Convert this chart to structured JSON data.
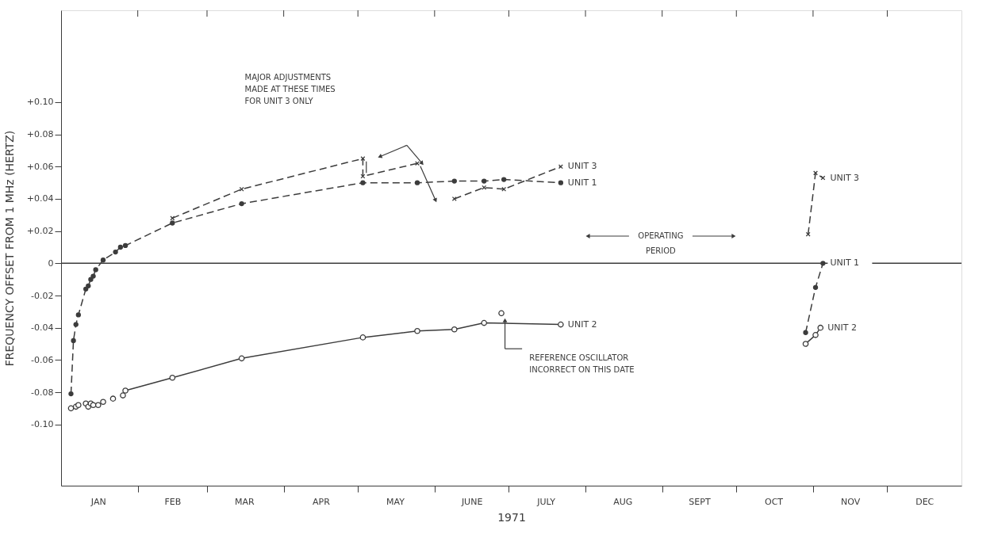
{
  "chart_data": {
    "type": "line",
    "xlabel": "1971",
    "ylabel": "FREQUENCY OFFSET FROM 1 MHz (HERTZ)",
    "xlim": [
      "1971-01-01",
      "1971-12-31"
    ],
    "ylim": [
      -0.138,
      0.157
    ],
    "xticks": [
      {
        "value": "1971-02-01",
        "label": null
      },
      {
        "value": "1971-03-01",
        "label": null
      },
      {
        "value": "1971-04-01",
        "label": null
      },
      {
        "value": "1971-05-01",
        "label": null
      },
      {
        "value": "1971-06-01",
        "label": null
      },
      {
        "value": "1971-07-01",
        "label": null
      },
      {
        "value": "1971-08-01",
        "label": null
      },
      {
        "value": "1971-09-01",
        "label": null
      },
      {
        "value": "1971-10-01",
        "label": null
      },
      {
        "value": "1971-11-01",
        "label": null
      },
      {
        "value": "1971-12-01",
        "label": null
      },
      {
        "value": "1971-01-16",
        "label": "JAN"
      },
      {
        "value": "1971-02-15",
        "label": "FEB"
      },
      {
        "value": "1971-03-16",
        "label": "MAR"
      },
      {
        "value": "1971-04-16",
        "label": "APR"
      },
      {
        "value": "1971-05-16",
        "label": "MAY"
      },
      {
        "value": "1971-06-16",
        "label": "JUNE"
      },
      {
        "value": "1971-07-16",
        "label": "JULY"
      },
      {
        "value": "1971-08-16",
        "label": "AUG"
      },
      {
        "value": "1971-09-16",
        "label": "SEPT"
      },
      {
        "value": "1971-10-16",
        "label": "OCT"
      },
      {
        "value": "1971-11-16",
        "label": "NOV"
      },
      {
        "value": "1971-12-16",
        "label": "DEC"
      }
    ],
    "yticks": [
      {
        "value": 0.1,
        "label": "+0.10"
      },
      {
        "value": 0.08,
        "label": "+0.08"
      },
      {
        "value": 0.06,
        "label": "+0.06"
      },
      {
        "value": 0.04,
        "label": "+0.04"
      },
      {
        "value": 0.02,
        "label": "+0.02"
      },
      0,
      {
        "value": -0.02,
        "label": "-0.02"
      },
      {
        "value": -0.04,
        "label": "-0.04"
      },
      {
        "value": -0.06,
        "label": "-0.06"
      },
      {
        "value": -0.08,
        "label": "-0.08"
      },
      {
        "value": -0.1,
        "label": "-0.10"
      }
    ],
    "grid": false,
    "series": [
      {
        "name": "UNIT 1",
        "color": "#3c3c3c",
        "marker": "circle",
        "line_style": "dashed",
        "x": [
          "1971-01-05",
          "1971-01-06",
          "1971-01-07",
          "1971-01-08",
          "1971-01-11",
          "1971-01-12",
          "1971-01-13",
          "1971-01-14",
          "1971-01-15",
          "1971-01-18",
          "1971-01-23",
          "1971-01-25",
          "1971-01-27",
          "1971-02-15",
          "1971-03-15",
          "1971-05-03",
          "1971-05-25",
          "1971-06-09",
          "1971-06-21",
          "1971-06-29",
          "1971-07-22"
        ],
        "values": [
          -0.081,
          -0.048,
          -0.038,
          -0.032,
          -0.016,
          -0.014,
          -0.01,
          -0.008,
          -0.004,
          0.002,
          0.007,
          0.01,
          0.011,
          0.025,
          0.037,
          0.05,
          0.05,
          0.051,
          0.051,
          0.052,
          0.05
        ]
      },
      {
        "name": "UNIT 2",
        "color": "#3c3c3c",
        "marker": "circle",
        "line_style": "solid",
        "x": [
          "1971-01-27",
          "1971-02-15",
          "1971-03-15",
          "1971-05-03",
          "1971-05-25",
          "1971-06-09",
          "1971-06-21",
          "1971-07-22"
        ],
        "values": [
          -0.079,
          -0.071,
          -0.059,
          -0.046,
          -0.042,
          -0.041,
          -0.037,
          -0.038
        ]
      },
      {
        "type": "scatter",
        "color": "#3c3c3c",
        "marker": "circle",
        "x": [
          "1971-01-05",
          "1971-01-07",
          "1971-01-08",
          "1971-01-11",
          "1971-01-12",
          "1971-01-13",
          "1971-01-14",
          "1971-01-16",
          "1971-01-18",
          "1971-01-22",
          "1971-01-26",
          "1971-06-28"
        ],
        "values": [
          -0.09,
          -0.089,
          -0.088,
          -0.087,
          -0.089,
          -0.087,
          -0.088,
          -0.088,
          -0.086,
          -0.084,
          -0.082,
          -0.031
        ]
      },
      {
        "name": "UNIT 3",
        "color": "#3c3c3c",
        "marker": "cross",
        "line_style": "dashed",
        "x": [
          "1971-02-15",
          "1971-03-15",
          "1971-05-03",
          "1971-05-03",
          "1971-05-25",
          "1971-06-01",
          "1971-06-09",
          "1971-06-21",
          "1971-06-29",
          "1971-07-22"
        ],
        "values": [
          0.028,
          0.046,
          0.065,
          0.054,
          0.062,
          null,
          0.04,
          0.047,
          0.046,
          0.06
        ]
      },
      {
        "name": "UNIT 3",
        "color": "#3c3c3c",
        "marker": "cross",
        "line_style": "dashed",
        "x": [
          "1971-10-30",
          "1971-11-02",
          "1971-11-05"
        ],
        "values": [
          0.018,
          0.056,
          0.053
        ]
      },
      {
        "name": "UNIT 1",
        "color": "#3c3c3c",
        "marker": "circle",
        "line_style": "dashed",
        "x": [
          "1971-10-29",
          "1971-11-02",
          "1971-11-05"
        ],
        "values": [
          -0.043,
          -0.015,
          0
        ]
      },
      {
        "name": "UNIT 2",
        "color": "#3c3c3c",
        "marker": "circle",
        "line_style": "solid",
        "x": [
          "1971-10-29",
          "1971-11-02",
          "1971-11-04"
        ],
        "values": [
          -0.05,
          -0.0445,
          -0.04
        ]
      }
    ],
    "ref_lines": [
      {
        "axis": "y",
        "value": 0,
        "color": "#3c3c3c"
      }
    ],
    "annotations": [
      "MAJOR ADJUSTMENTS\nMADE AT THESE TIMES\nFOR UNIT 3 ONLY",
      "REFERENCE OSCILLATOR\nINCORRECT ON THIS DATE",
      "OPERATING\nPERIOD"
    ]
  }
}
